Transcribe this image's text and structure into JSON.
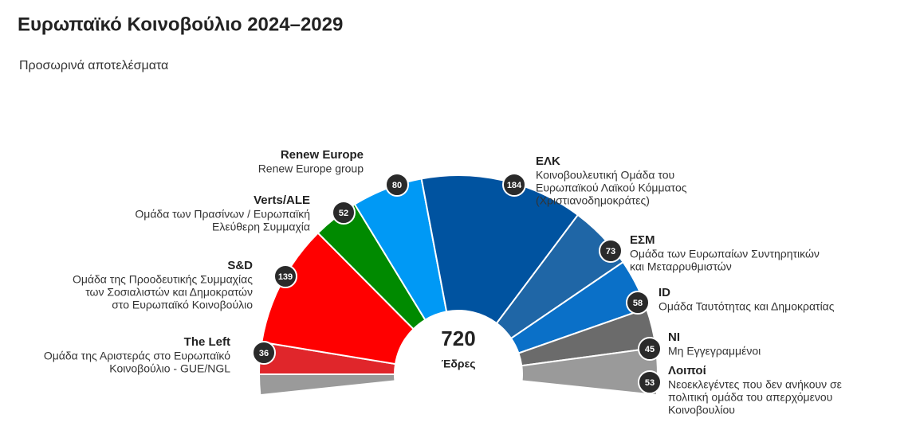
{
  "chart_data": {
    "type": "hemicycle",
    "title": "Ευρωπαϊκό Κοινοβούλιο 2024–2029",
    "subtitle": "Προσωρινά αποτελέσματα",
    "total": 720,
    "total_label": "Έδρες",
    "series": [
      {
        "name": "The Left",
        "description": [
          "Ομάδα της Αριστεράς στο Ευρωπαϊκό",
          "Κοινοβούλιο - GUE/NGL"
        ],
        "color": "#e0262b",
        "value": 36
      },
      {
        "name": "S&D",
        "description": [
          "Ομάδα της Προοδευτικής Συμμαχίας",
          "των Σοσιαλιστών και Δημοκρατών",
          "στο Ευρωπαϊκό Κοινοβούλιο"
        ],
        "color": "#ff0000",
        "value": 139
      },
      {
        "name": "Verts/ALE",
        "description": [
          "Ομάδα των Πρασίνων / Ευρωπαϊκή",
          "Ελεύθερη Συμμαχία"
        ],
        "color": "#008a00",
        "value": 52
      },
      {
        "name": "Renew Europe",
        "description": [
          "Renew Europe group"
        ],
        "color": "#0099f5",
        "value": 80
      },
      {
        "name": "ΕΛΚ",
        "description": [
          "Κοινοβουλευτική Ομάδα του",
          "Ευρωπαϊκού Λαϊκού Κόμματος",
          "(Χριστιανοδημοκράτες)"
        ],
        "color": "#0053a0",
        "value": 184
      },
      {
        "name": "ΕΣΜ",
        "description": [
          "Ομάδα των Ευρωπαίων Συντηρητικών",
          "και Μεταρρυθμιστών"
        ],
        "color": "#1f66a6",
        "value": 73
      },
      {
        "name": "ID",
        "description": [
          "Ομάδα Ταυτότητας και Δημοκρατίας"
        ],
        "color": "#0a70c8",
        "value": 58
      },
      {
        "name": "NI",
        "description": [
          "Μη Εγγεγραμμένοι"
        ],
        "color": "#6b6b6b",
        "value": 45
      },
      {
        "name": "Λοιποί",
        "description": [
          "Νεοεκλεγέντες που δεν ανήκουν σε",
          "πολιτική ομάδα του απερχόμενου",
          "Κοινοβουλίου"
        ],
        "color": "#9a9a9a",
        "value": 53
      }
    ]
  }
}
